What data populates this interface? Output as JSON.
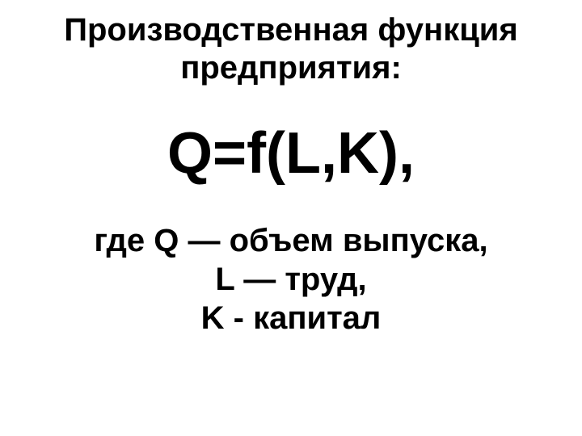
{
  "title_line1": "Производственная функция",
  "title_line2": "предприятия:",
  "formula": "Q=f(L,K),",
  "def1": "где Q — объем выпуска,",
  "def2": "L — труд,",
  "def3": "K - капитал",
  "styling": {
    "background_color": "#ffffff",
    "text_color": "#000000",
    "title_fontsize_pt": 30,
    "formula_fontsize_pt": 54,
    "def_fontsize_pt": 30,
    "font_weight": 700,
    "font_family": "Arial",
    "slide_width": 720,
    "slide_height": 540
  }
}
